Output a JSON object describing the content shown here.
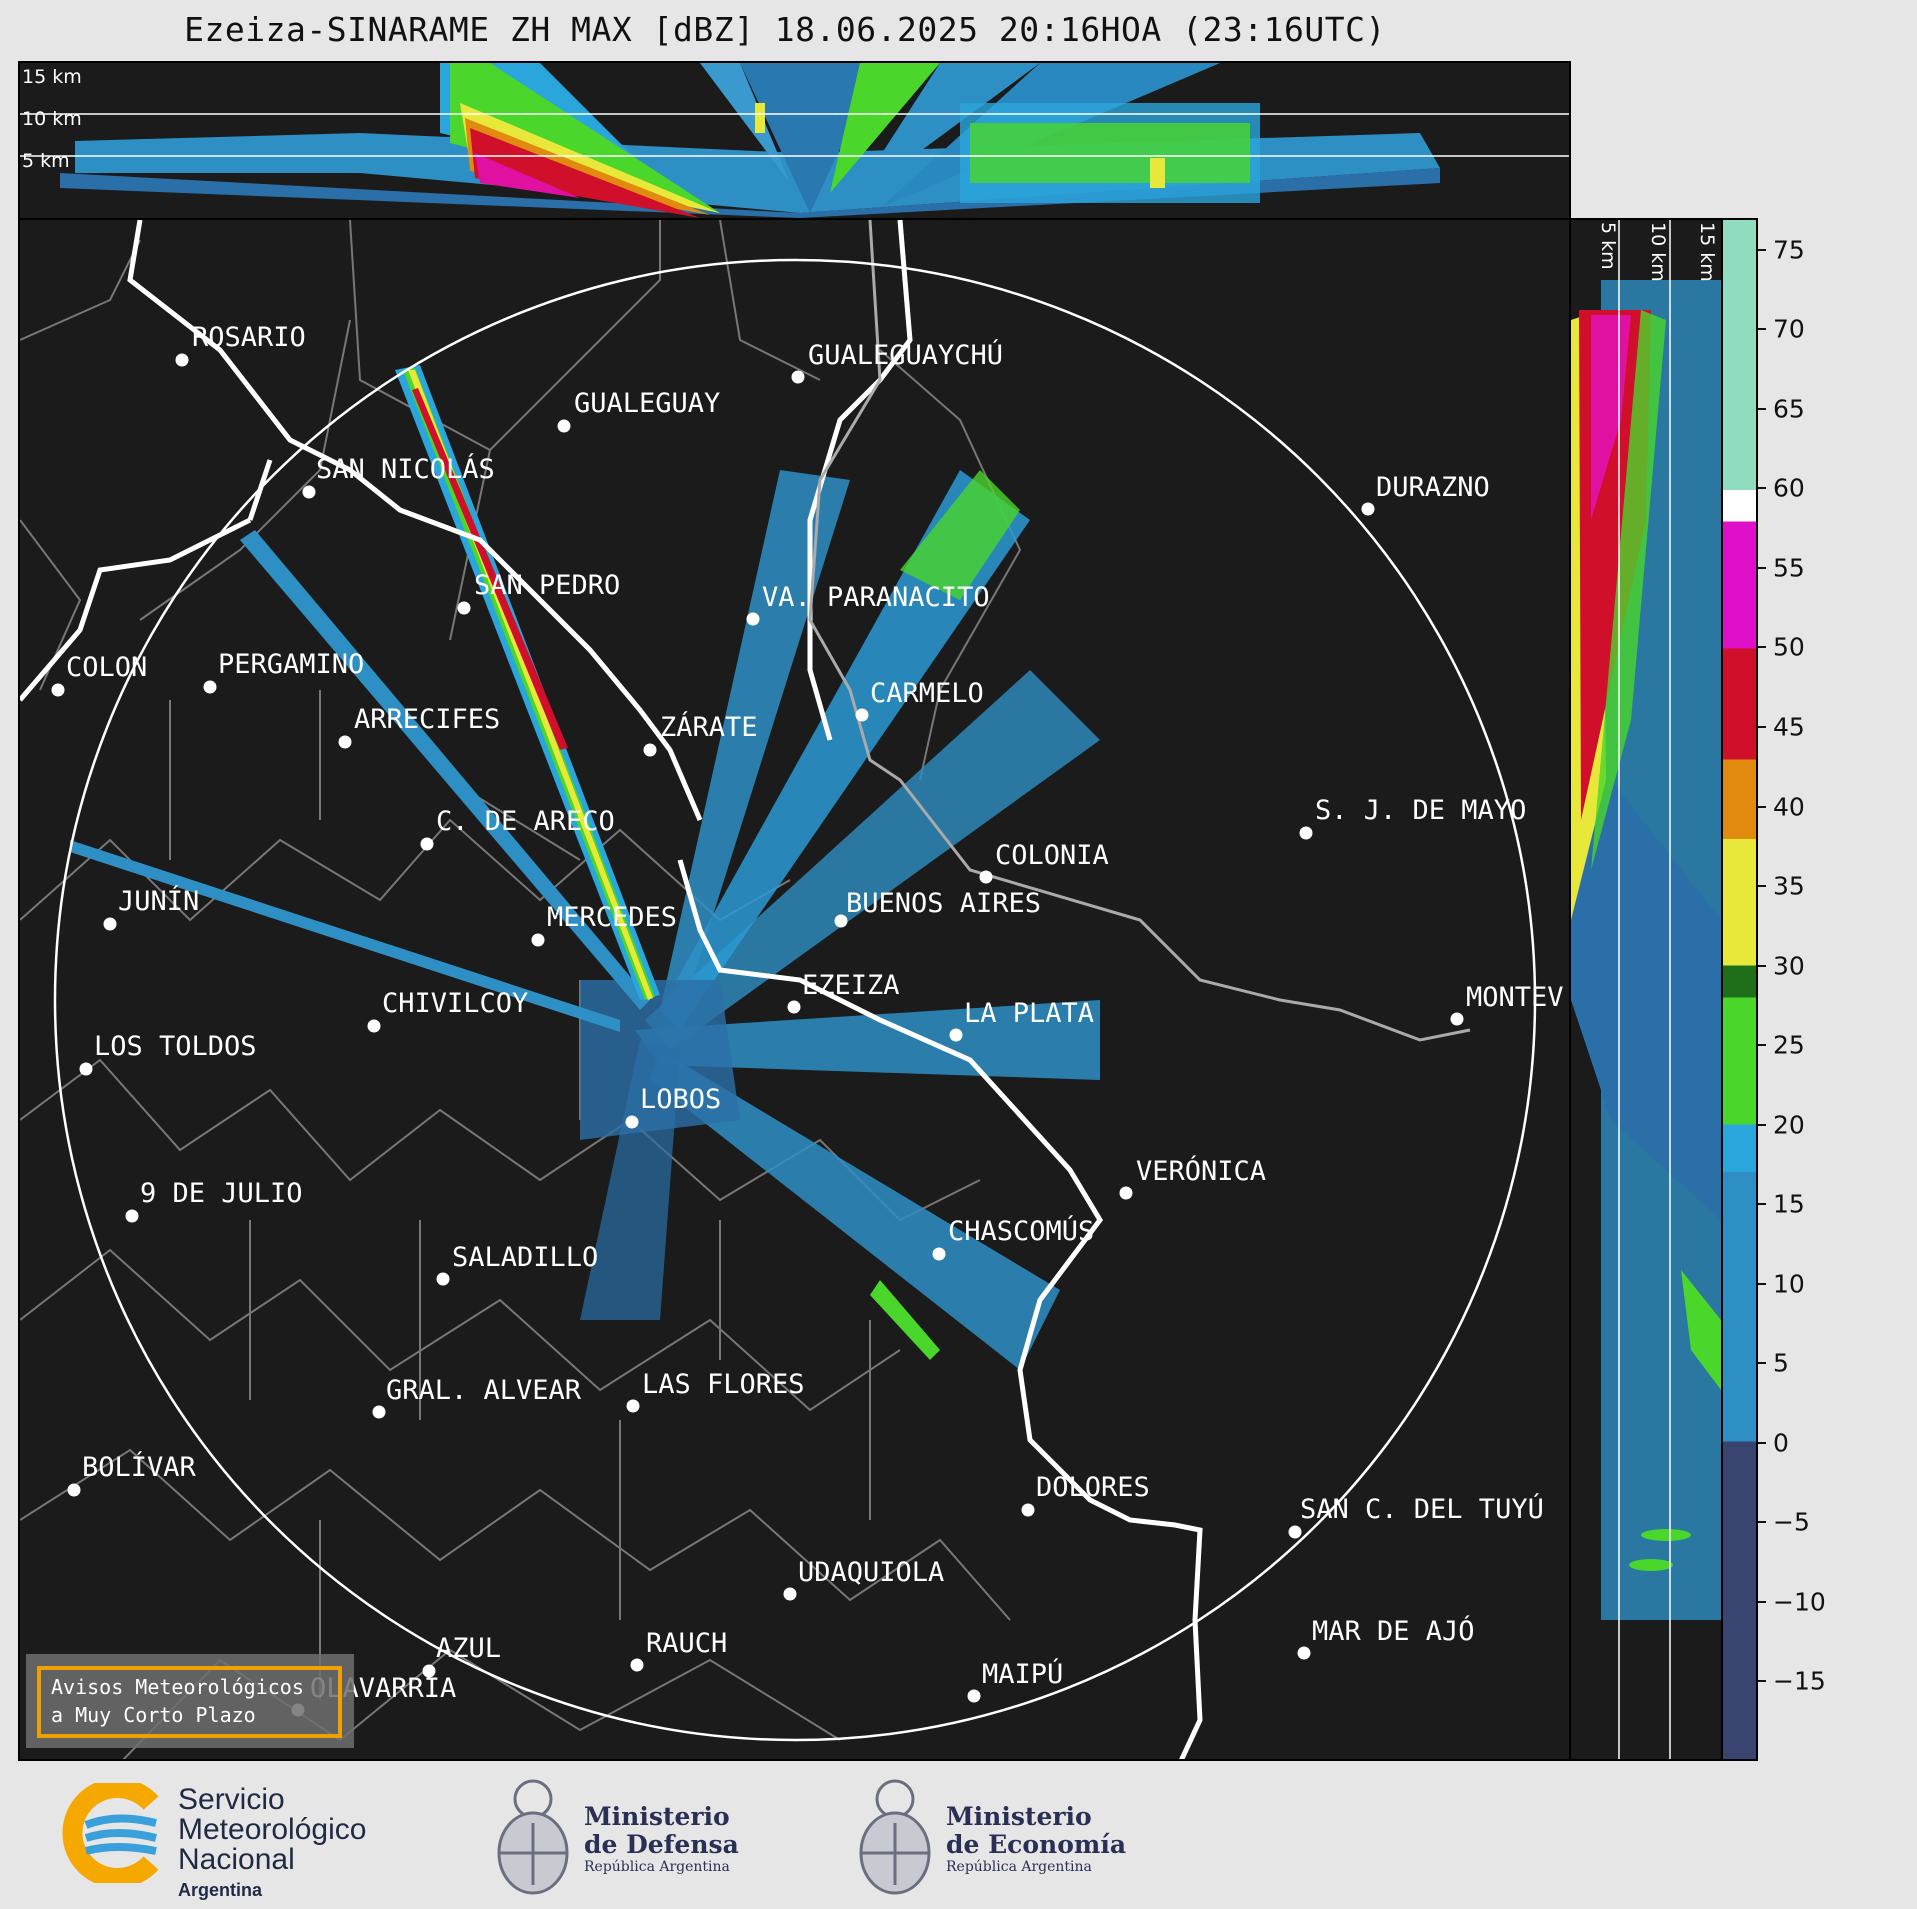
{
  "title": "Ezeiza-SINARAME ZH MAX [dBZ] 18.06.2025 20:16HOA (23:16UTC)",
  "top_cross_section": {
    "altitudes": [
      "15 km",
      "10 km",
      "5 km"
    ]
  },
  "side_cross_section": {
    "altitudes": [
      "5 km",
      "10 km",
      "15 km"
    ]
  },
  "colorbar": {
    "ticks": [
      "75",
      "70",
      "65",
      "60",
      "55",
      "50",
      "45",
      "40",
      "35",
      "30",
      "25",
      "20",
      "15",
      "10",
      "5",
      "0",
      "−5",
      "−10",
      "−15"
    ],
    "range_dbz": [
      -20,
      77
    ],
    "bands": [
      {
        "from": -20,
        "to": 0,
        "color": "#3a4470"
      },
      {
        "from": 0,
        "to": 17,
        "color": "#2e8fc4"
      },
      {
        "from": 17,
        "to": 20,
        "color": "#2aa6dc"
      },
      {
        "from": 20,
        "to": 28,
        "color": "#4ad62a"
      },
      {
        "from": 28,
        "to": 30,
        "color": "#1f6e1a"
      },
      {
        "from": 30,
        "to": 38,
        "color": "#e8e83a"
      },
      {
        "from": 38,
        "to": 43,
        "color": "#e08a10"
      },
      {
        "from": 43,
        "to": 50,
        "color": "#d0102a"
      },
      {
        "from": 50,
        "to": 58,
        "color": "#e010c8"
      },
      {
        "from": 58,
        "to": 60,
        "color": "#ffffff"
      },
      {
        "from": 60,
        "to": 77,
        "color": "#8fdcbf"
      }
    ]
  },
  "cities": [
    {
      "name": "ROSARIO"
    },
    {
      "name": "GUALEGUAYCHÚ"
    },
    {
      "name": "GUALEGUAY"
    },
    {
      "name": "SAN NICOLÁS"
    },
    {
      "name": "DURAZNO"
    },
    {
      "name": "SAN PEDRO"
    },
    {
      "name": "VA. PARANACITO"
    },
    {
      "name": "COLON"
    },
    {
      "name": "PERGAMINO"
    },
    {
      "name": "CARMELO"
    },
    {
      "name": "ARRECIFES"
    },
    {
      "name": "ZÁRATE"
    },
    {
      "name": "S. J. DE MAYO"
    },
    {
      "name": "C. DE ARECO"
    },
    {
      "name": "COLONIA"
    },
    {
      "name": "JUNÍN"
    },
    {
      "name": "MERCEDES"
    },
    {
      "name": "BUENOS AIRES"
    },
    {
      "name": "EZEIZA"
    },
    {
      "name": "MONTEV"
    },
    {
      "name": "CHIVILCOY"
    },
    {
      "name": "LA PLATA"
    },
    {
      "name": "LOS TOLDOS"
    },
    {
      "name": "LOBOS"
    },
    {
      "name": "VERÓNICA"
    },
    {
      "name": "9 DE JULIO"
    },
    {
      "name": "CHASCOMÚS"
    },
    {
      "name": "SALADILLO"
    },
    {
      "name": "GRAL. ALVEAR"
    },
    {
      "name": "LAS FLORES"
    },
    {
      "name": "BOLÍVAR"
    },
    {
      "name": "DOLORES"
    },
    {
      "name": "SAN C. DEL TUYÚ"
    },
    {
      "name": "UDAQUIOLA"
    },
    {
      "name": "MAR DE AJÓ"
    },
    {
      "name": "AZUL"
    },
    {
      "name": "RAUCH"
    },
    {
      "name": "MAIPÚ"
    },
    {
      "name": "OLAVARRÍA"
    }
  ],
  "avisos": {
    "line1": "Avisos Meteorológicos",
    "line2": "a Muy Corto Plazo"
  },
  "footer": {
    "smn": {
      "line1": "Servicio",
      "line2": "Meteorológico",
      "line3": "Nacional",
      "country": "Argentina"
    },
    "defensa": {
      "line1": "Ministerio",
      "line2": "de Defensa",
      "sub": "República Argentina"
    },
    "economia": {
      "line1": "Ministerio",
      "line2": "de Economía",
      "sub": "República Argentina"
    }
  }
}
